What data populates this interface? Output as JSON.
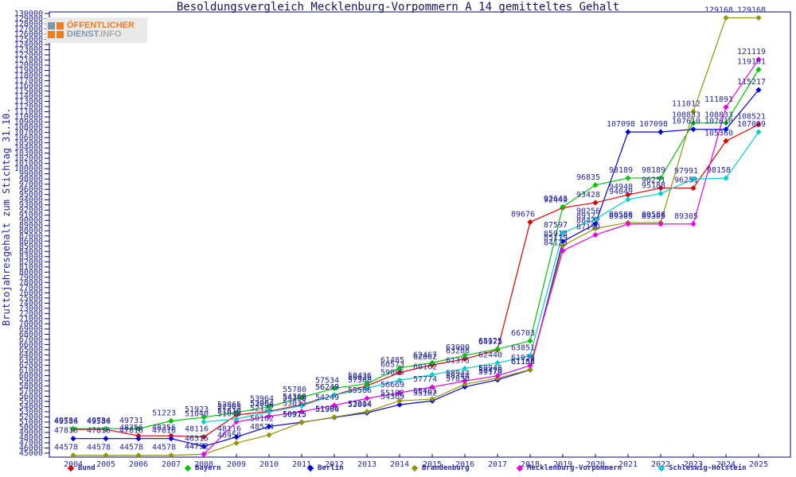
{
  "title": "Besoldungsvergleich Mecklenburg-Vorpommern A 14 gemitteltes Gehalt",
  "logo": {
    "line1": "ÖFFENTLICHER",
    "line2a": "DIENST",
    "line2b": ".INFO"
  },
  "colors": {
    "axis_frame": "#000080",
    "tick_text": "#2626a0",
    "data_label_text": "#2626a0",
    "title_text": "#14145a",
    "logo_orange": "#ef7d1a",
    "logo_slate": "#7d97ad"
  },
  "chart_data": {
    "type": "line",
    "title": "Besoldungsvergleich Mecklenburg-Vorpommern A 14 gemitteltes Gehalt",
    "xlabel": "",
    "ylabel": "Bruttojahresgehalt zum Stichtag 31.10.",
    "ylim": [
      45000,
      130000
    ],
    "ytick_step": 1000,
    "grid": false,
    "legend_position": "bottom",
    "x": [
      2004,
      2005,
      2006,
      2007,
      2008,
      2009,
      2010,
      2011,
      2012,
      2013,
      2014,
      2015,
      2016,
      2017,
      2018,
      2019,
      2020,
      2021,
      2022,
      2023,
      2024,
      2025
    ],
    "series": [
      {
        "name": "Bund",
        "color": "#dd0000",
        "values": [
          49586,
          49586,
          48356,
          48356,
          48116,
          52365,
          53084,
          54368,
          56249,
          58036,
          60573,
          62062,
          63208,
          64975,
          89676,
          92449,
          93428,
          94948,
          96251,
          96251,
          105360,
          108521
        ]
      },
      {
        "name": "Bayern",
        "color": "#00c400",
        "values": [
          49734,
          49734,
          49731,
          51223,
          51923,
          52865,
          53964,
          55780,
          57534,
          58436,
          61485,
          62467,
          63900,
          65125,
          66703,
          92643,
          96835,
          98189,
          98189,
          108833,
          108833,
          119161
        ]
      },
      {
        "name": "Berlin",
        "color": "#0000dd",
        "values": [
          47816,
          47816,
          47816,
          47816,
          46315,
          48116,
          50162,
          50975,
          51904,
          52804,
          54369,
          55102,
          57830,
          59170,
          61108,
          85913,
          89327,
          107098,
          107098,
          107610,
          107610,
          115217
        ]
      },
      {
        "name": "Brandenburg",
        "color": "#949400",
        "values": [
          44578,
          44578,
          44578,
          44578,
          44792,
          46950,
          48524,
          50915,
          51986,
          53014,
          55102,
          55461,
          58344,
          59476,
          61155,
          85119,
          88422,
          89588,
          89588,
          111012,
          129168,
          129168
        ]
      },
      {
        "name": "Mecklenburg-Vorpommern",
        "color": "#e800e8",
        "values": [
          null,
          null,
          null,
          null,
          44792,
          51049,
          52122,
          53032,
          54249,
          55586,
          56669,
          57774,
          58944,
          59946,
          61936,
          84123,
          87190,
          89305,
          89305,
          89305,
          111891,
          121119
        ]
      },
      {
        "name": "Schleswig-Holstein",
        "color": "#00d0d0",
        "values": [
          null,
          null,
          null,
          null,
          51040,
          51610,
          52964,
          54168,
          56243,
          57568,
          59085,
          60162,
          61375,
          62440,
          63851,
          87597,
          90256,
          94049,
          95188,
          97991,
          98158,
          107099
        ]
      }
    ]
  }
}
